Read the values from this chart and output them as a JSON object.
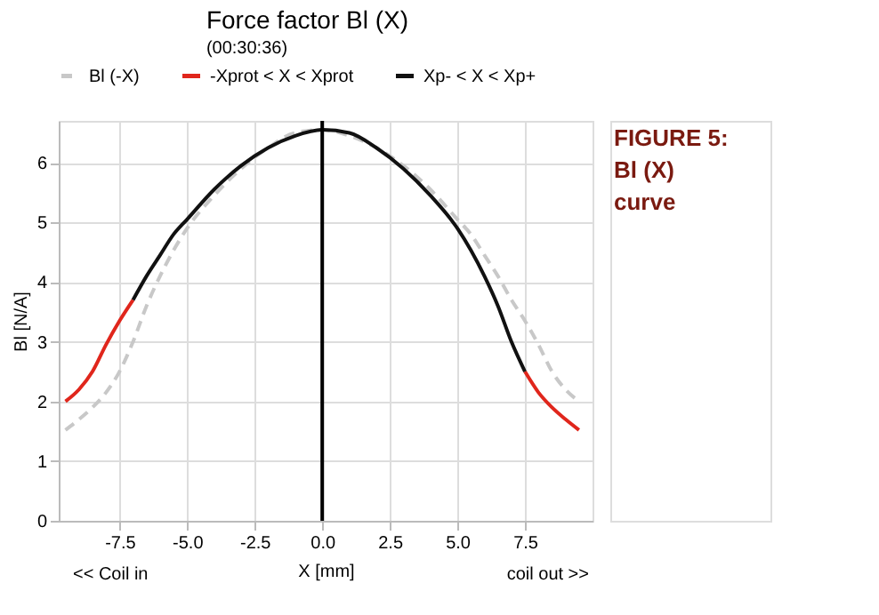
{
  "chart_data": {
    "type": "line",
    "title": "Force factor Bl (X)",
    "subtitle": "(00:30:36)",
    "xlabel": "X [mm]",
    "ylabel": "Bl [N/A]",
    "annotations": [
      "<< Coil in",
      "coil out >>",
      "FIGURE 5: Bl (X) curve"
    ],
    "xlim": [
      -9.75,
      10
    ],
    "ylim": [
      0,
      6.7
    ],
    "xticks": [
      -7.5,
      {
        "value": -5,
        "label": "-5.0"
      },
      -2.5,
      {
        "value": 0,
        "label": "0.0"
      },
      2.5,
      {
        "value": 5,
        "label": "5.0"
      },
      7.5
    ],
    "yticks": [
      0,
      1,
      2,
      3,
      4,
      5,
      6
    ],
    "grid": true,
    "legend": "top",
    "marker": "none",
    "series": [
      {
        "name": "Bl (-X)",
        "color": "#c8c8c8",
        "line_style": "dashed",
        "x": [
          -9.5,
          -9,
          -8.5,
          -8,
          -7.5,
          -7,
          -6.5,
          -6,
          -5,
          -4,
          -3,
          -2,
          -1,
          0,
          1,
          2,
          3,
          4,
          5,
          5.5,
          6,
          6.5,
          7,
          7.5,
          8,
          8.5,
          9,
          9.5
        ],
        "values": [
          1.52,
          1.7,
          1.9,
          2.15,
          2.5,
          3.0,
          3.6,
          4.1,
          4.9,
          5.45,
          5.9,
          6.25,
          6.5,
          6.55,
          6.45,
          6.25,
          5.95,
          5.55,
          5.05,
          4.8,
          4.45,
          4.1,
          3.7,
          3.35,
          2.95,
          2.5,
          2.2,
          2.0
        ]
      },
      {
        "name": "-Xprot < X < Xprot",
        "color": "#e0261c",
        "line_style": "solid",
        "x": [
          -9.5,
          -9,
          -8.5,
          -8,
          -7.5,
          -7,
          0,
          7.5,
          8,
          8.5,
          9,
          9.5
        ],
        "values": [
          2.0,
          2.2,
          2.5,
          2.95,
          3.35,
          3.7,
          null,
          2.5,
          2.15,
          1.9,
          1.7,
          1.52
        ]
      },
      {
        "name": "Xp- < X < Xp+",
        "color": "#111111",
        "line_style": "solid",
        "x": [
          -7,
          -6.5,
          -6,
          -5.5,
          -5,
          -4,
          -3,
          -2,
          -1,
          0,
          1,
          2,
          3,
          4,
          5,
          6,
          6.5,
          7,
          7.5
        ],
        "values": [
          3.7,
          4.1,
          4.45,
          4.8,
          5.05,
          5.55,
          5.95,
          6.25,
          6.45,
          6.55,
          6.5,
          6.25,
          5.9,
          5.45,
          4.9,
          4.1,
          3.6,
          3.0,
          2.5
        ]
      }
    ],
    "ref_lines": [
      {
        "axis": "x",
        "value": 0,
        "color": "#000000",
        "line_style": "solid"
      }
    ]
  }
}
